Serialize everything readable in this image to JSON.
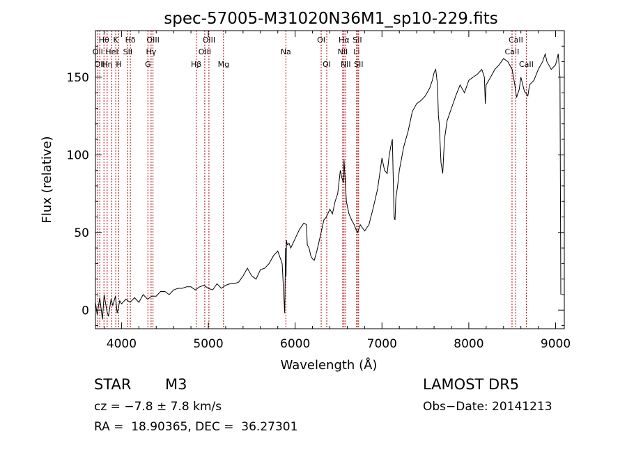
{
  "chart_data": {
    "type": "line",
    "title": "spec-57005-M31020N36M1_sp10-229.fits",
    "xlabel": "Wavelength (Å)",
    "ylabel": "Flux (relative)",
    "xlim": [
      3700,
      9100
    ],
    "ylim": [
      -12,
      180
    ],
    "x_ticks": [
      4000,
      5000,
      6000,
      7000,
      8000,
      9000
    ],
    "y_ticks": [
      0,
      50,
      100,
      150
    ],
    "grid": false,
    "series": [
      {
        "x": [
          3700,
          3720,
          3750,
          3780,
          3800,
          3830,
          3850,
          3880,
          3900,
          3930,
          3950,
          3980,
          4000,
          4050,
          4100,
          4150,
          4200,
          4250,
          4300,
          4350,
          4400,
          4450,
          4500,
          4550,
          4600,
          4650,
          4700,
          4750,
          4800,
          4850,
          4900,
          4950,
          5000,
          5050,
          5100,
          5150,
          5200,
          5250,
          5300,
          5350,
          5400,
          5450,
          5500,
          5550,
          5600,
          5650,
          5700,
          5750,
          5800,
          5850,
          5880,
          5890,
          5895,
          5900,
          5910,
          5930,
          5950,
          6000,
          6050,
          6100,
          6130,
          6140,
          6160,
          6180,
          6200,
          6220,
          6250,
          6300,
          6330,
          6360,
          6400,
          6430,
          6460,
          6490,
          6500,
          6520,
          6540,
          6555,
          6563,
          6575,
          6590,
          6620,
          6650,
          6680,
          6700,
          6720,
          6750,
          6800,
          6850,
          6900,
          6950,
          7000,
          7030,
          7060,
          7080,
          7100,
          7120,
          7140,
          7150,
          7160,
          7180,
          7200,
          7250,
          7300,
          7350,
          7400,
          7450,
          7500,
          7550,
          7580,
          7600,
          7620,
          7640,
          7650,
          7660,
          7680,
          7700,
          7720,
          7750,
          7800,
          7850,
          7900,
          7950,
          8000,
          8050,
          8100,
          8150,
          8180,
          8190,
          8200,
          8250,
          8300,
          8350,
          8400,
          8450,
          8500,
          8530,
          8550,
          8580,
          8600,
          8640,
          8680,
          8700,
          8750,
          8800,
          8850,
          8880,
          8900,
          8950,
          9000,
          9030,
          9050,
          9060
        ],
        "y": [
          5,
          -3,
          8,
          -6,
          10,
          0,
          -4,
          7,
          3,
          9,
          -2,
          6,
          4,
          7,
          5,
          8,
          5,
          10,
          7,
          9,
          9,
          12,
          12,
          10,
          13,
          14,
          14,
          15,
          15,
          13,
          15,
          16,
          14,
          13,
          17,
          14,
          16,
          17,
          17,
          18,
          22,
          27,
          22,
          20,
          26,
          27,
          30,
          35,
          38,
          30,
          -2,
          40,
          22,
          45,
          42,
          43,
          40,
          46,
          52,
          56,
          55,
          42,
          40,
          35,
          33,
          32,
          38,
          50,
          58,
          60,
          65,
          62,
          70,
          75,
          80,
          90,
          85,
          82,
          97,
          85,
          70,
          62,
          58,
          55,
          52,
          50,
          55,
          51,
          55,
          66,
          78,
          98,
          90,
          88,
          98,
          105,
          110,
          60,
          58,
          72,
          80,
          90,
          105,
          115,
          128,
          133,
          135,
          138,
          143,
          148,
          153,
          155,
          145,
          125,
          120,
          95,
          88,
          110,
          122,
          130,
          138,
          145,
          140,
          148,
          150,
          152,
          155,
          150,
          133,
          145,
          150,
          155,
          158,
          162,
          160,
          155,
          145,
          137,
          142,
          150,
          141,
          138,
          145,
          148,
          155,
          160,
          165,
          160,
          155,
          158,
          165,
          150,
          10
        ]
      }
    ],
    "lines": [
      {
        "w": 3727,
        "label": "OII",
        "row": 2
      },
      {
        "w": 3750,
        "label": "OII",
        "row": 3
      },
      {
        "w": 3798,
        "label": "Hθ",
        "row": 1
      },
      {
        "w": 3835,
        "label": "Hη",
        "row": 3
      },
      {
        "w": 3889,
        "label": "HeI",
        "row": 2
      },
      {
        "w": 3934,
        "label": "K",
        "row": 1
      },
      {
        "w": 3969,
        "label": "H",
        "row": 3
      },
      {
        "w": 4072,
        "label": "SII",
        "row": 2
      },
      {
        "w": 4102,
        "label": "Hδ",
        "row": 1
      },
      {
        "w": 4304,
        "label": "G",
        "row": 3
      },
      {
        "w": 4341,
        "label": "Hγ",
        "row": 2
      },
      {
        "w": 4363,
        "label": "OIII",
        "row": 1
      },
      {
        "w": 4861,
        "label": "Hβ",
        "row": 3
      },
      {
        "w": 4959,
        "label": "OIII",
        "row": 2
      },
      {
        "w": 5007,
        "label": "OIII",
        "row": 1
      },
      {
        "w": 5175,
        "label": "Mg",
        "row": 3
      },
      {
        "w": 5893,
        "label": "Na",
        "row": 2
      },
      {
        "w": 6300,
        "label": "OI",
        "row": 1
      },
      {
        "w": 6364,
        "label": "OI",
        "row": 3
      },
      {
        "w": 6548,
        "label": "NII",
        "row": 2
      },
      {
        "w": 6563,
        "label": "Hα",
        "row": 1
      },
      {
        "w": 6583,
        "label": "NII",
        "row": 3
      },
      {
        "w": 6708,
        "label": "Li",
        "row": 2
      },
      {
        "w": 6716,
        "label": "SII",
        "row": 1
      },
      {
        "w": 6731,
        "label": "SII",
        "row": 3
      },
      {
        "w": 8498,
        "label": "CaII",
        "row": 2
      },
      {
        "w": 8542,
        "label": "CaII",
        "row": 1
      },
      {
        "w": 8662,
        "label": "CaII",
        "row": 3
      }
    ]
  },
  "info": {
    "object_class": "STAR",
    "subclass": "M3",
    "survey": "LAMOST DR5",
    "cz": "cz = −7.8 ± 7.8 km/s",
    "obs_date": "Obs−Date: 20141213",
    "coords": "RA =  18.90365, DEC =  36.27301"
  }
}
